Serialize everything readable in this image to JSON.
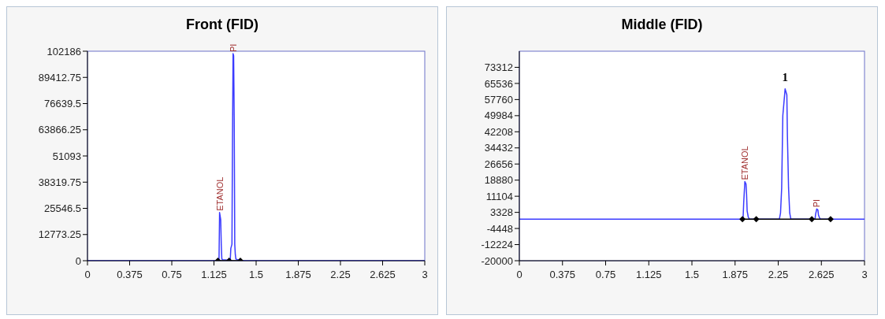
{
  "chart_data": [
    {
      "type": "line",
      "title": "Front (FID)",
      "xlim": [
        0,
        3
      ],
      "xticks": [
        0,
        0.375,
        0.75,
        1.125,
        1.5,
        1.875,
        2.25,
        2.625,
        3
      ],
      "ylim": [
        0,
        102186
      ],
      "yticks": [
        0,
        12773.25,
        25546.5,
        38319.75,
        51093,
        63866.25,
        76639.5,
        89412.75,
        102186
      ],
      "marker": "none",
      "line_style": "solid",
      "series": [
        {
          "color": "#3b3bff",
          "x": [
            0,
            1.16,
            1.17,
            1.175,
            1.185,
            1.19,
            1.195,
            1.2,
            1.25,
            1.27,
            1.275,
            1.285,
            1.29,
            1.295,
            1.3,
            1.305,
            1.31,
            1.315,
            1.32,
            1.35,
            1.4,
            3
          ],
          "values": [
            0,
            0,
            500,
            23500,
            20000,
            8000,
            1000,
            500,
            300,
            500,
            6000,
            8000,
            60000,
            101000,
            100000,
            70000,
            8000,
            3000,
            800,
            200,
            0,
            0
          ]
        },
        {
          "color": "#000000",
          "marker": "diamond",
          "x": [
            1.16,
            1.26,
            1.36
          ],
          "values": [
            0,
            0,
            0
          ]
        }
      ],
      "annotations": [
        {
          "text": "ETANOL",
          "x": 1.175,
          "y": 23500
        },
        {
          "text": "PI",
          "x": 1.295,
          "y": 101000
        }
      ]
    },
    {
      "type": "line",
      "title": "Middle (FID)",
      "xlim": [
        0,
        3
      ],
      "xticks": [
        0,
        0.375,
        0.75,
        1.125,
        1.5,
        1.875,
        2.25,
        2.625,
        3
      ],
      "ylim": [
        -20000,
        81088
      ],
      "yticks": [
        -20000,
        -12224,
        -4448,
        3328,
        11104,
        18880,
        26656,
        34432,
        42208,
        49984,
        57760,
        65536,
        73312
      ],
      "marker": "none",
      "line_style": "solid",
      "series": [
        {
          "color": "#3b3bff",
          "x": [
            0,
            1.93,
            1.945,
            1.95,
            1.96,
            1.97,
            1.975,
            1.98,
            1.99,
            2.0,
            2.26,
            2.27,
            2.28,
            2.29,
            2.31,
            2.325,
            2.33,
            2.34,
            2.35,
            2.36,
            2.57,
            2.575,
            2.585,
            2.595,
            2.6,
            2.61,
            2.62,
            3
          ],
          "values": [
            0,
            0,
            1000,
            8000,
            18200,
            17000,
            12000,
            4000,
            1000,
            0,
            0,
            3000,
            15000,
            50000,
            62900,
            60000,
            40000,
            15000,
            3000,
            0,
            0,
            2500,
            5000,
            4500,
            2000,
            500,
            0,
            0
          ]
        },
        {
          "color": "#000000",
          "marker": "diamond",
          "x": [
            1.939,
            2.059,
            2.542,
            2.705
          ],
          "values": [
            0,
            0,
            0,
            0
          ]
        }
      ],
      "annotations": [
        {
          "text": "ETANOL",
          "x": 1.96,
          "y": 18200
        },
        {
          "text": "1",
          "x": 2.31,
          "y": 62900
        },
        {
          "text": "PI",
          "x": 2.585,
          "y": 5000
        }
      ]
    }
  ]
}
